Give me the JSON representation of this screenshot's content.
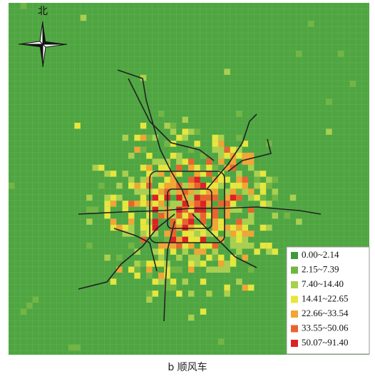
{
  "compass": {
    "label": "北"
  },
  "legend": {
    "items": [
      {
        "label": "0.00~2.14",
        "color": "#3f9a3c"
      },
      {
        "label": "2.15~7.39",
        "color": "#72b544"
      },
      {
        "label": "7.40~14.40",
        "color": "#a9cf4e"
      },
      {
        "label": "14.41~22.65",
        "color": "#e6e63c"
      },
      {
        "label": "22.66~33.54",
        "color": "#f0a534"
      },
      {
        "label": "33.55~50.06",
        "color": "#e8642c"
      },
      {
        "label": "50.07~91.40",
        "color": "#dc2222"
      }
    ]
  },
  "caption": "b 顺风车"
}
